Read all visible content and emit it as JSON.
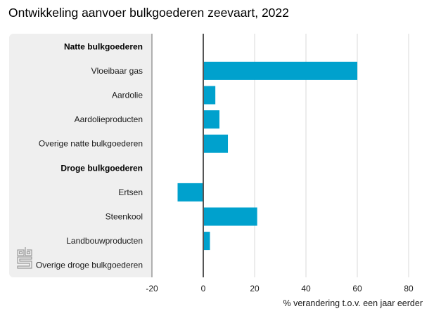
{
  "chart_data": {
    "type": "bar",
    "orientation": "horizontal",
    "title": "Ontwikkeling aanvoer bulkgoederen zeevaart, 2022",
    "xlabel": "% verandering t.o.v. een jaar eerder",
    "ylabel": "",
    "xlim": [
      -20,
      80
    ],
    "xticks": [
      -20,
      0,
      20,
      40,
      60,
      80
    ],
    "xtick_labels": [
      "-20",
      "0",
      "20",
      "40",
      "60",
      "80"
    ],
    "grid": true,
    "categories": [
      {
        "label": "Natte bulkgoederen",
        "header": true,
        "value": null
      },
      {
        "label": "Vloeibaar gas",
        "header": false,
        "value": 60.0
      },
      {
        "label": "Aardolie",
        "header": false,
        "value": 4.7
      },
      {
        "label": "Aardolieproducten",
        "header": false,
        "value": 6.3
      },
      {
        "label": "Overige natte bulkgoederen",
        "header": false,
        "value": 9.6
      },
      {
        "label": "Droge bulkgoederen",
        "header": true,
        "value": null
      },
      {
        "label": "Ertsen",
        "header": false,
        "value": -10.0
      },
      {
        "label": "Steenkool",
        "header": false,
        "value": 21.0
      },
      {
        "label": "Landbouwproducten",
        "header": false,
        "value": 2.6
      },
      {
        "label": "Overige droge bulkgoederen",
        "header": false,
        "value": 0.0
      }
    ],
    "bar_color": "#00a1cd",
    "legend": "none"
  },
  "branding": {
    "logo": "cbs-logo-icon"
  }
}
